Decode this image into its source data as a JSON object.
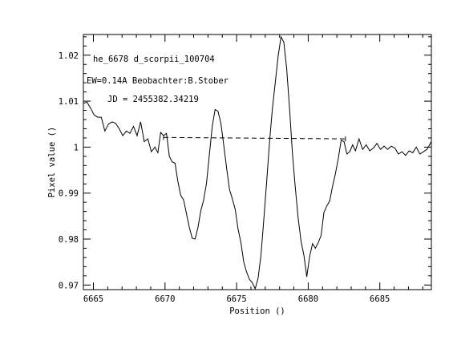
{
  "chart_data": {
    "type": "line",
    "title": "",
    "xlabel": "Position ()",
    "ylabel": "Pixel value ()",
    "xlim": [
      6664.3,
      6688.6
    ],
    "ylim": [
      0.969,
      1.0245
    ],
    "xticks": [
      6665,
      6670,
      6675,
      6680,
      6685
    ],
    "xtick_labels": [
      "6665",
      "6670",
      "6675",
      "6680",
      "6685"
    ],
    "yticks": [
      0.97,
      0.98,
      0.99,
      1.0,
      1.01,
      1.02
    ],
    "ytick_labels": [
      "0.97",
      "0.98",
      "0.99",
      "1",
      "1.01",
      "1.02"
    ],
    "grid": false,
    "annotations": [
      "he_6678 d_scorpii_100704",
      "EW=0.14A Beobachter:B.Stober",
      "JD = 2455382.34219"
    ],
    "continuum": {
      "x": [
        6669.9,
        6682.6
      ],
      "y": [
        1.0021,
        1.0018
      ]
    },
    "series": [
      {
        "x": [
          6664.3,
          6664.55,
          6664.8,
          6665.05,
          6665.3,
          6665.55,
          6665.8,
          6666.05,
          6666.3,
          6666.55,
          6666.8,
          6667.05,
          6667.3,
          6667.55,
          6667.8,
          6668.05,
          6668.3,
          6668.55,
          6668.8,
          6669.05,
          6669.3,
          6669.5,
          6669.7,
          6669.9,
          6670.1,
          6670.3,
          6670.5,
          6670.7,
          6670.9,
          6671.1,
          6671.3,
          6671.5,
          6671.7,
          6671.9,
          6672.1,
          6672.3,
          6672.5,
          6672.7,
          6672.9,
          6673.1,
          6673.3,
          6673.5,
          6673.7,
          6673.9,
          6674.1,
          6674.3,
          6674.5,
          6674.7,
          6674.9,
          6675.1,
          6675.3,
          6675.5,
          6675.7,
          6675.9,
          6676.1,
          6676.3,
          6676.5,
          6676.7,
          6676.9,
          6677.1,
          6677.3,
          6677.5,
          6677.7,
          6677.9,
          6678.1,
          6678.3,
          6678.5,
          6678.7,
          6678.9,
          6679.1,
          6679.3,
          6679.5,
          6679.7,
          6679.9,
          6680.1,
          6680.3,
          6680.5,
          6680.7,
          6680.9,
          6681.1,
          6681.3,
          6681.5,
          6681.7,
          6681.9,
          6682.1,
          6682.3,
          6682.5,
          6682.7,
          6682.9,
          6683.1,
          6683.3,
          6683.55,
          6683.8,
          6684.05,
          6684.3,
          6684.55,
          6684.8,
          6685.05,
          6685.3,
          6685.55,
          6685.8,
          6686.05,
          6686.3,
          6686.55,
          6686.8,
          6687.05,
          6687.3,
          6687.55,
          6687.8,
          6688.05,
          6688.3,
          6688.6
        ],
        "y": [
          1.0095,
          1.0098,
          1.0085,
          1.007,
          1.0065,
          1.0065,
          1.0035,
          1.005,
          1.0055,
          1.0052,
          1.004,
          1.0025,
          1.0035,
          1.003,
          1.0045,
          1.0025,
          1.0055,
          1.0012,
          1.0018,
          0.999,
          1.0,
          0.9988,
          1.0032,
          1.0025,
          1.003,
          0.998,
          0.9968,
          0.9965,
          0.9925,
          0.9895,
          0.9885,
          0.9855,
          0.9825,
          0.9802,
          0.98,
          0.9825,
          0.9862,
          0.9885,
          0.9922,
          0.9985,
          1.0045,
          1.0082,
          1.0078,
          1.0052,
          1.0005,
          0.9955,
          0.9908,
          0.9888,
          0.9865,
          0.9822,
          0.9792,
          0.975,
          0.9728,
          0.9712,
          0.9705,
          0.9692,
          0.9715,
          0.9765,
          0.9842,
          0.9925,
          1.0012,
          1.0085,
          1.014,
          1.0198,
          1.024,
          1.0228,
          1.017,
          1.0082,
          0.9985,
          0.9912,
          0.9845,
          0.9795,
          0.9765,
          0.9718,
          0.9762,
          0.979,
          0.978,
          0.9792,
          0.9808,
          0.9858,
          0.9872,
          0.9883,
          0.9915,
          0.9942,
          0.9975,
          1.0015,
          1.0012,
          0.9985,
          0.999,
          1.0005,
          0.9992,
          1.0018,
          0.9995,
          1.0005,
          0.9992,
          0.9998,
          1.0008,
          0.9995,
          1.0002,
          0.9995,
          1.0002,
          0.9998,
          0.9985,
          0.999,
          0.9982,
          0.9992,
          0.9988,
          1.0,
          0.9985,
          0.999,
          0.9995,
          1.0012
        ]
      }
    ]
  }
}
